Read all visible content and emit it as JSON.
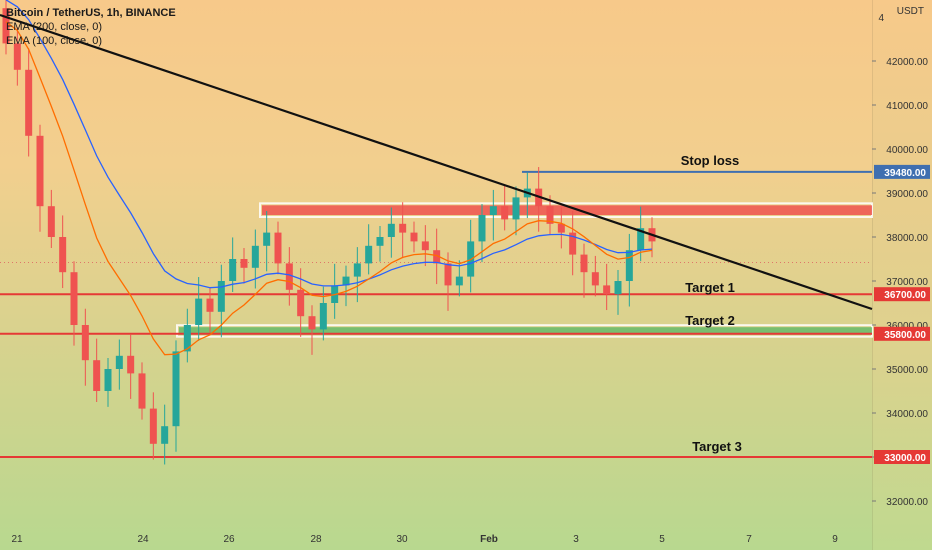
{
  "legend": {
    "symbol": "Bitcoin / TetherUS, 1h, BINANCE",
    "ema200": "EMA (200, close, 0)",
    "ema100": "EMA (100, close, 0)"
  },
  "currency": "USDT",
  "colors": {
    "up": "#26a69a",
    "down": "#ef5350",
    "ema200": "#2962ff",
    "ema100": "#ff6d00",
    "level": "#e53935",
    "stoploss": "#3f6fb0",
    "trend": "#111111",
    "resistance_fill": "#ef5350",
    "support_fill": "#66bb6a"
  },
  "chart_data": {
    "type": "candlestick",
    "x_ticks": [
      "21",
      "24",
      "26",
      "28",
      "30",
      "Feb",
      "3",
      "5",
      "7",
      "9"
    ],
    "y_ticks": [
      32000,
      33000,
      34000,
      35000,
      36000,
      37000,
      38000,
      39000,
      40000,
      41000,
      42000
    ],
    "ylim": [
      31200,
      43500
    ],
    "price_labels": [
      {
        "value": 39480,
        "label": "39480.00",
        "color": "#3f6fb0"
      },
      {
        "value": 36700,
        "label": "36700.00",
        "color": "#e53935"
      },
      {
        "value": 35800,
        "label": "35800.00",
        "color": "#e53935"
      },
      {
        "value": 33000,
        "label": "33000.00",
        "color": "#e53935"
      }
    ],
    "annotations": [
      {
        "text": "Stop loss",
        "value": 39480
      },
      {
        "text": "Target 1",
        "value": 36700
      },
      {
        "text": "Target 2",
        "value": 35800
      },
      {
        "text": "Target 3",
        "value": 33000
      }
    ],
    "zones": [
      {
        "name": "resistance",
        "low": 38500,
        "high": 38720
      },
      {
        "name": "support",
        "low": 35780,
        "high": 35950
      }
    ],
    "trendline": {
      "from": {
        "day": 21.0,
        "price": 43400
      },
      "to": {
        "day": 9.5,
        "price": 36350
      }
    },
    "series_close": [
      42400,
      41800,
      40300,
      38700,
      38000,
      37200,
      36000,
      35200,
      34500,
      35000,
      35300,
      34900,
      34100,
      33300,
      33700,
      35400,
      36000,
      36600,
      36300,
      37000,
      37500,
      37300,
      37800,
      38100,
      37400,
      36800,
      36200,
      35900,
      36500,
      36900,
      37100,
      37400,
      37800,
      38000,
      38300,
      38100,
      37900,
      37700,
      37400,
      36900,
      37100,
      37900,
      38500,
      38700,
      38400,
      38900,
      39100,
      38700,
      38300,
      38100,
      37600,
      37200,
      36900,
      36700,
      37000,
      37700,
      38200,
      37900
    ]
  }
}
